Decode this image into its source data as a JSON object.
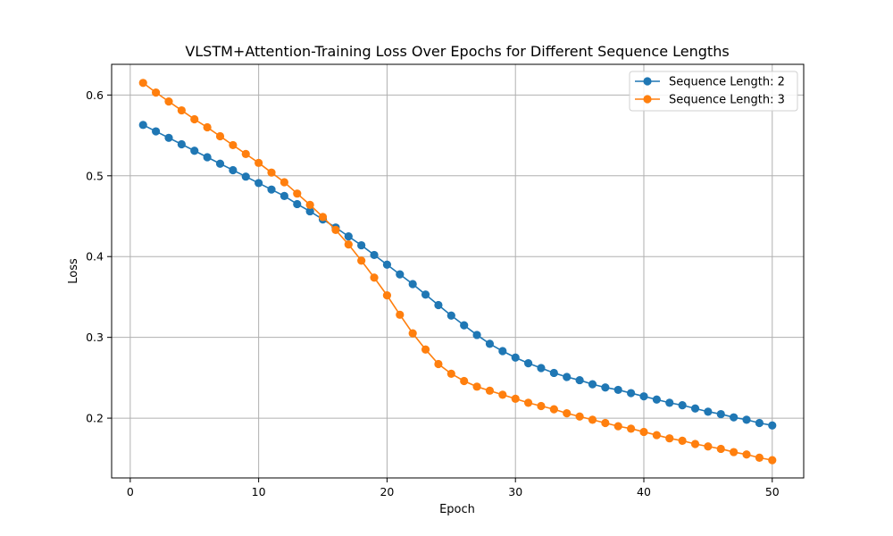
{
  "chart_data": {
    "type": "line",
    "title": "VLSTM+Attention-Training Loss Over Epochs for Different Sequence Lengths",
    "xlabel": "Epoch",
    "ylabel": "Loss",
    "xlim": [
      -1.45,
      52.45
    ],
    "ylim": [
      0.126,
      0.638
    ],
    "xticks": [
      0,
      10,
      20,
      30,
      40,
      50
    ],
    "yticks": [
      0.2,
      0.3,
      0.4,
      0.5,
      0.6
    ],
    "xtick_labels": [
      "0",
      "10",
      "20",
      "30",
      "40",
      "50"
    ],
    "ytick_labels": [
      "0.2",
      "0.3",
      "0.4",
      "0.5",
      "0.6"
    ],
    "grid": true,
    "legend_position": "top-right",
    "x": [
      1,
      2,
      3,
      4,
      5,
      6,
      7,
      8,
      9,
      10,
      11,
      12,
      13,
      14,
      15,
      16,
      17,
      18,
      19,
      20,
      21,
      22,
      23,
      24,
      25,
      26,
      27,
      28,
      29,
      30,
      31,
      32,
      33,
      34,
      35,
      36,
      37,
      38,
      39,
      40,
      41,
      42,
      43,
      44,
      45,
      46,
      47,
      48,
      49,
      50
    ],
    "series": [
      {
        "name": "Sequence Length: 2",
        "color": "#1f77b4",
        "values": [
          0.563,
          0.555,
          0.547,
          0.539,
          0.531,
          0.523,
          0.515,
          0.507,
          0.499,
          0.491,
          0.483,
          0.475,
          0.465,
          0.456,
          0.446,
          0.436,
          0.425,
          0.414,
          0.402,
          0.39,
          0.378,
          0.366,
          0.353,
          0.34,
          0.327,
          0.315,
          0.303,
          0.292,
          0.283,
          0.275,
          0.268,
          0.262,
          0.256,
          0.251,
          0.247,
          0.242,
          0.238,
          0.235,
          0.231,
          0.227,
          0.223,
          0.219,
          0.216,
          0.212,
          0.208,
          0.205,
          0.201,
          0.198,
          0.194,
          0.191
        ]
      },
      {
        "name": "Sequence Length: 3",
        "color": "#ff7f0e",
        "values": [
          0.615,
          0.603,
          0.592,
          0.581,
          0.57,
          0.56,
          0.549,
          0.538,
          0.527,
          0.516,
          0.504,
          0.492,
          0.478,
          0.464,
          0.449,
          0.433,
          0.415,
          0.395,
          0.374,
          0.352,
          0.328,
          0.305,
          0.285,
          0.267,
          0.255,
          0.246,
          0.239,
          0.234,
          0.229,
          0.224,
          0.219,
          0.215,
          0.211,
          0.206,
          0.202,
          0.198,
          0.194,
          0.19,
          0.187,
          0.183,
          0.179,
          0.175,
          0.172,
          0.168,
          0.165,
          0.162,
          0.158,
          0.155,
          0.151,
          0.148
        ]
      }
    ]
  }
}
